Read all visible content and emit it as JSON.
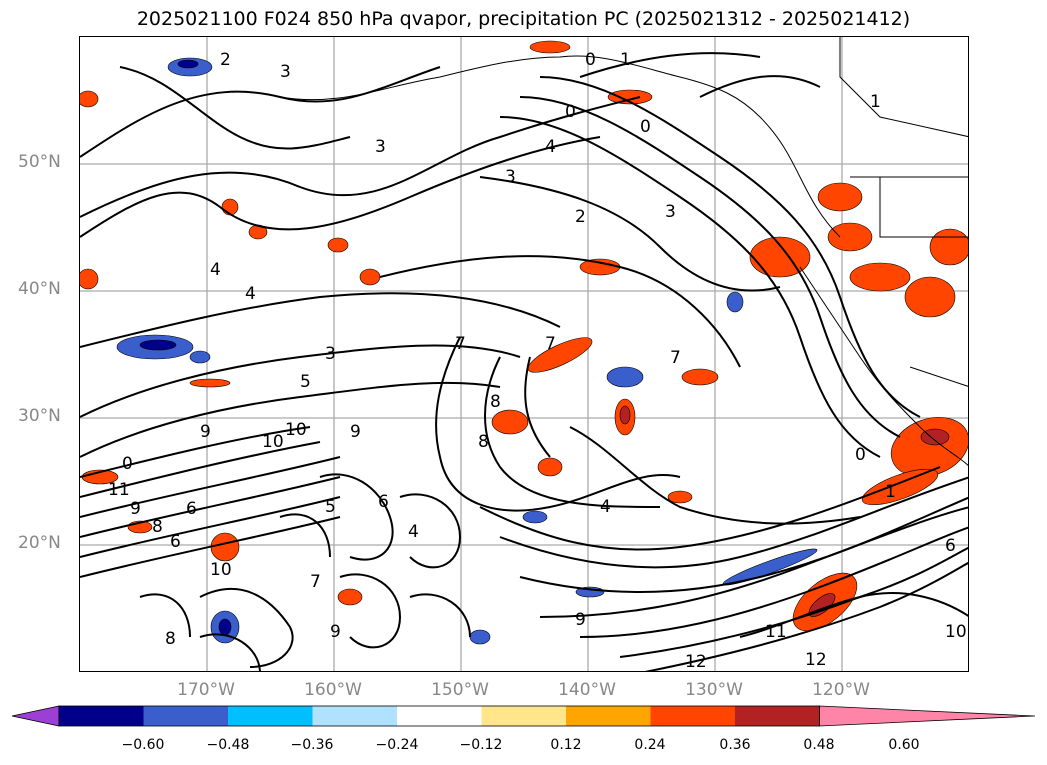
{
  "title": "2025021100 F024 850 hPa qvapor, precipitation PC (2025021312 - 2025021412)",
  "lat_labels": [
    "50°N",
    "40°N",
    "30°N",
    "20°N"
  ],
  "lon_labels": [
    "170°W",
    "160°W",
    "150°W",
    "140°W",
    "130°W",
    "120°W"
  ],
  "colorbar": {
    "tick_labels": [
      "−0.60",
      "−0.48",
      "−0.36",
      "−0.24",
      "−0.12",
      "0.12",
      "0.24",
      "0.36",
      "0.48",
      "0.60"
    ],
    "colors": [
      "#9b3fd6",
      "#00008b",
      "#3a5fcd",
      "#00bfff",
      "#b0e2ff",
      "#ffffff",
      "#ffe68a",
      "#ffa500",
      "#ff4500",
      "#b22222",
      "#ff85a8"
    ]
  },
  "contour_labels": [
    "2",
    "3",
    "0",
    "1",
    "1",
    "0",
    "0",
    "4",
    "3",
    "3",
    "2",
    "3",
    "4",
    "4",
    "3",
    "5",
    "7",
    "7",
    "7",
    "8",
    "9",
    "10",
    "0",
    "11",
    "9",
    "6",
    "8",
    "6",
    "9",
    "10",
    "8",
    "6",
    "4",
    "5",
    "7",
    "10",
    "9",
    "0",
    "6",
    "10",
    "12",
    "12",
    "11",
    "9",
    "8",
    "1",
    "4"
  ]
}
